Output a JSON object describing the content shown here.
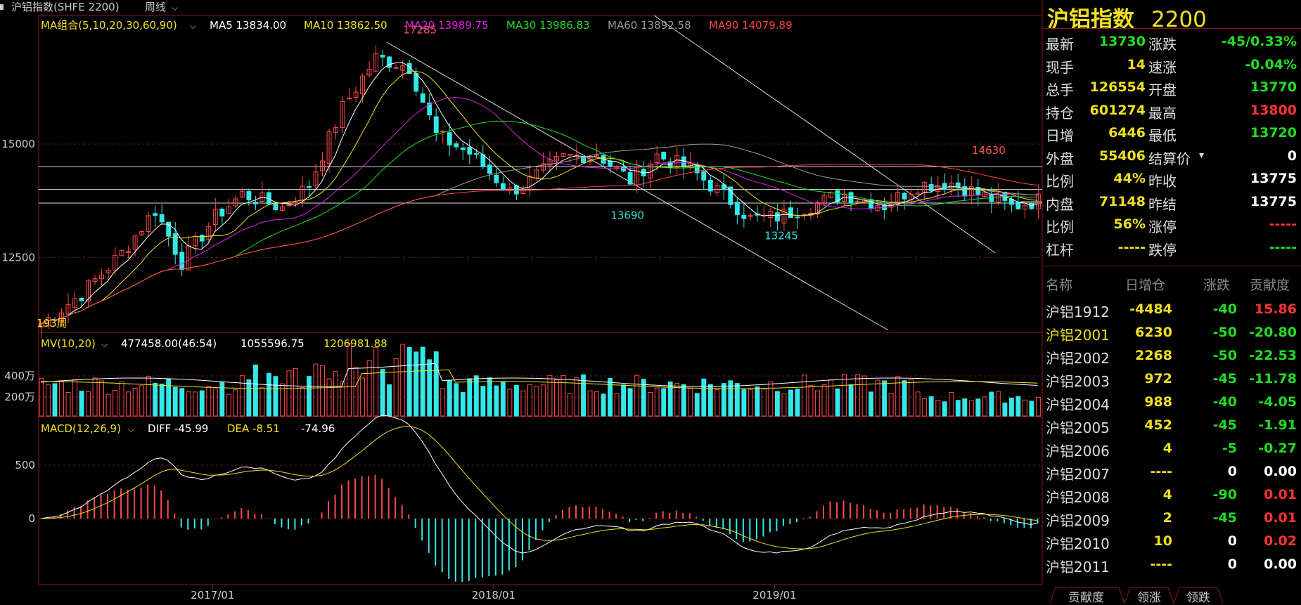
{
  "topbar": {
    "title": "沪铝指数(SHFE 2200)",
    "period": "周线"
  },
  "chart_data": [
    {
      "type": "candlestick",
      "name": "price",
      "legend_title": "MA组合(5,10,20,30,60,90)",
      "ma": [
        {
          "name": "MA5",
          "value": "13834.00",
          "color": "#ffffff"
        },
        {
          "name": "MA10",
          "value": "13862.50",
          "color": "#f0e020"
        },
        {
          "name": "MA20",
          "value": "13989.75",
          "color": "#e020e0"
        },
        {
          "name": "MA30",
          "value": "13986.83",
          "color": "#22dd22"
        },
        {
          "name": "MA60",
          "value": "13892.58",
          "color": "#9a9a9a"
        },
        {
          "name": "MA90",
          "value": "14079.89",
          "color": "#ff4444"
        }
      ],
      "y_ticks": [
        15000,
        12500
      ],
      "ylim": [
        10900,
        17800
      ],
      "annotations": [
        {
          "label": "17285",
          "color": "#ff5555"
        },
        {
          "label": "13690",
          "color": "#33dddd"
        },
        {
          "label": "13245",
          "color": "#33dddd"
        },
        {
          "label": "14630",
          "color": "#ff5555"
        }
      ],
      "start_label": "193周",
      "path": [
        [
          0,
          11050
        ],
        [
          6,
          11700
        ],
        [
          12,
          12600
        ],
        [
          17,
          13550
        ],
        [
          21,
          12400
        ],
        [
          26,
          13400
        ],
        [
          30,
          13900
        ],
        [
          36,
          13600
        ],
        [
          40,
          14100
        ],
        [
          45,
          15800
        ],
        [
          50,
          16900
        ],
        [
          55,
          16700
        ],
        [
          59,
          15200
        ],
        [
          64,
          14800
        ],
        [
          70,
          13950
        ],
        [
          73,
          14200
        ],
        [
          78,
          14700
        ],
        [
          83,
          14800
        ],
        [
          88,
          14200
        ],
        [
          92,
          14750
        ],
        [
          97,
          14450
        ],
        [
          103,
          13750
        ],
        [
          106,
          13350
        ],
        [
          110,
          13400
        ],
        [
          114,
          13600
        ],
        [
          120,
          13900
        ],
        [
          126,
          13650
        ],
        [
          131,
          14100
        ],
        [
          136,
          14150
        ],
        [
          141,
          13850
        ],
        [
          145,
          13620
        ],
        [
          150,
          13800
        ]
      ]
    },
    {
      "type": "bar",
      "name": "volume",
      "legend_title": "MV(10,20)",
      "values": [
        "477458.00(46:54)",
        "1055596.75",
        "1206981.88"
      ],
      "y_ticks": [
        "400万",
        "200万"
      ]
    },
    {
      "type": "macd",
      "name": "macd",
      "legend_title": "MACD(12,26,9)",
      "diff": "DIFF -45.99",
      "dea": "DEA -8.51",
      "macd": "-74.96",
      "y_ticks": [
        500,
        0
      ]
    }
  ],
  "x_ticks": [
    "2017/01",
    "2018/01",
    "2019/01"
  ],
  "panel": {
    "title": "沪铝指数",
    "code": "2200",
    "quote": [
      {
        "l1": "最新",
        "v1": "13730",
        "c1": "#22dd22",
        "l2": "涨跌",
        "v2": "-45/0.33%",
        "c2": "#22dd22"
      },
      {
        "l1": "现手",
        "v1": "14",
        "c1": "#f0e020",
        "l2": "速涨",
        "v2": "-0.04%",
        "c2": "#22dd22"
      },
      {
        "l1": "总手",
        "v1": "126554",
        "c1": "#f0e020",
        "l2": "开盘",
        "v2": "13770",
        "c2": "#22dd22"
      },
      {
        "l1": "持仓",
        "v1": "601274",
        "c1": "#f0e020",
        "l2": "最高",
        "v2": "13800",
        "c2": "#ff3333"
      },
      {
        "l1": "日增",
        "v1": "6446",
        "c1": "#f0e020",
        "l2": "最低",
        "v2": "13720",
        "c2": "#22dd22"
      },
      {
        "l1": "外盘",
        "v1": "55406",
        "c1": "#f0e020",
        "l2": "结算价",
        "v2": "0",
        "c2": "#ffffff"
      },
      {
        "l1": "比例",
        "v1": "44%",
        "c1": "#f0e020",
        "l2": "昨收",
        "v2": "13775",
        "c2": "#ffffff"
      },
      {
        "l1": "内盘",
        "v1": "71148",
        "c1": "#f0e020",
        "l2": "昨结",
        "v2": "13775",
        "c2": "#ffffff"
      },
      {
        "l1": "比例",
        "v1": "56%",
        "c1": "#f0e020",
        "l2": "涨停",
        "v2": "-----",
        "c2": "#ff3333"
      },
      {
        "l1": "杠杆",
        "v1": "-----",
        "c1": "#f0e020",
        "l2": "跌停",
        "v2": "-----",
        "c2": "#22dd22"
      }
    ],
    "headers": [
      "名称",
      "日增仓",
      "涨跌",
      "贡献度"
    ],
    "contracts": [
      {
        "name": "沪铝1912",
        "d": "-4484",
        "c": "-40",
        "cc": "#22dd22",
        "g": "15.86",
        "gc": "#ff3333",
        "hl": false
      },
      {
        "name": "沪铝2001",
        "d": "6230",
        "c": "-50",
        "cc": "#22dd22",
        "g": "-20.80",
        "gc": "#22dd22",
        "hl": true
      },
      {
        "name": "沪铝2002",
        "d": "2268",
        "c": "-50",
        "cc": "#22dd22",
        "g": "-22.53",
        "gc": "#22dd22",
        "hl": false
      },
      {
        "name": "沪铝2003",
        "d": "972",
        "c": "-45",
        "cc": "#22dd22",
        "g": "-11.78",
        "gc": "#22dd22",
        "hl": false
      },
      {
        "name": "沪铝2004",
        "d": "988",
        "c": "-40",
        "cc": "#22dd22",
        "g": "-4.05",
        "gc": "#22dd22",
        "hl": false
      },
      {
        "name": "沪铝2005",
        "d": "452",
        "c": "-45",
        "cc": "#22dd22",
        "g": "-1.91",
        "gc": "#22dd22",
        "hl": false
      },
      {
        "name": "沪铝2006",
        "d": "4",
        "c": "-5",
        "cc": "#22dd22",
        "g": "-0.27",
        "gc": "#22dd22",
        "hl": false
      },
      {
        "name": "沪铝2007",
        "d": "----",
        "c": "0",
        "cc": "#ffffff",
        "g": "0.00",
        "gc": "#ffffff",
        "hl": false
      },
      {
        "name": "沪铝2008",
        "d": "4",
        "c": "-90",
        "cc": "#22dd22",
        "g": "0.01",
        "gc": "#ff3333",
        "hl": false
      },
      {
        "name": "沪铝2009",
        "d": "2",
        "c": "-45",
        "cc": "#22dd22",
        "g": "0.01",
        "gc": "#ff3333",
        "hl": false
      },
      {
        "name": "沪铝2010",
        "d": "10",
        "c": "0",
        "cc": "#ffffff",
        "g": "0.02",
        "gc": "#ff3333",
        "hl": false
      },
      {
        "name": "沪铝2011",
        "d": "----",
        "c": "0",
        "cc": "#ffffff",
        "g": "0.00",
        "gc": "#ffffff",
        "hl": false
      }
    ],
    "tabs": [
      "贡献度",
      "领涨",
      "领跌"
    ]
  }
}
